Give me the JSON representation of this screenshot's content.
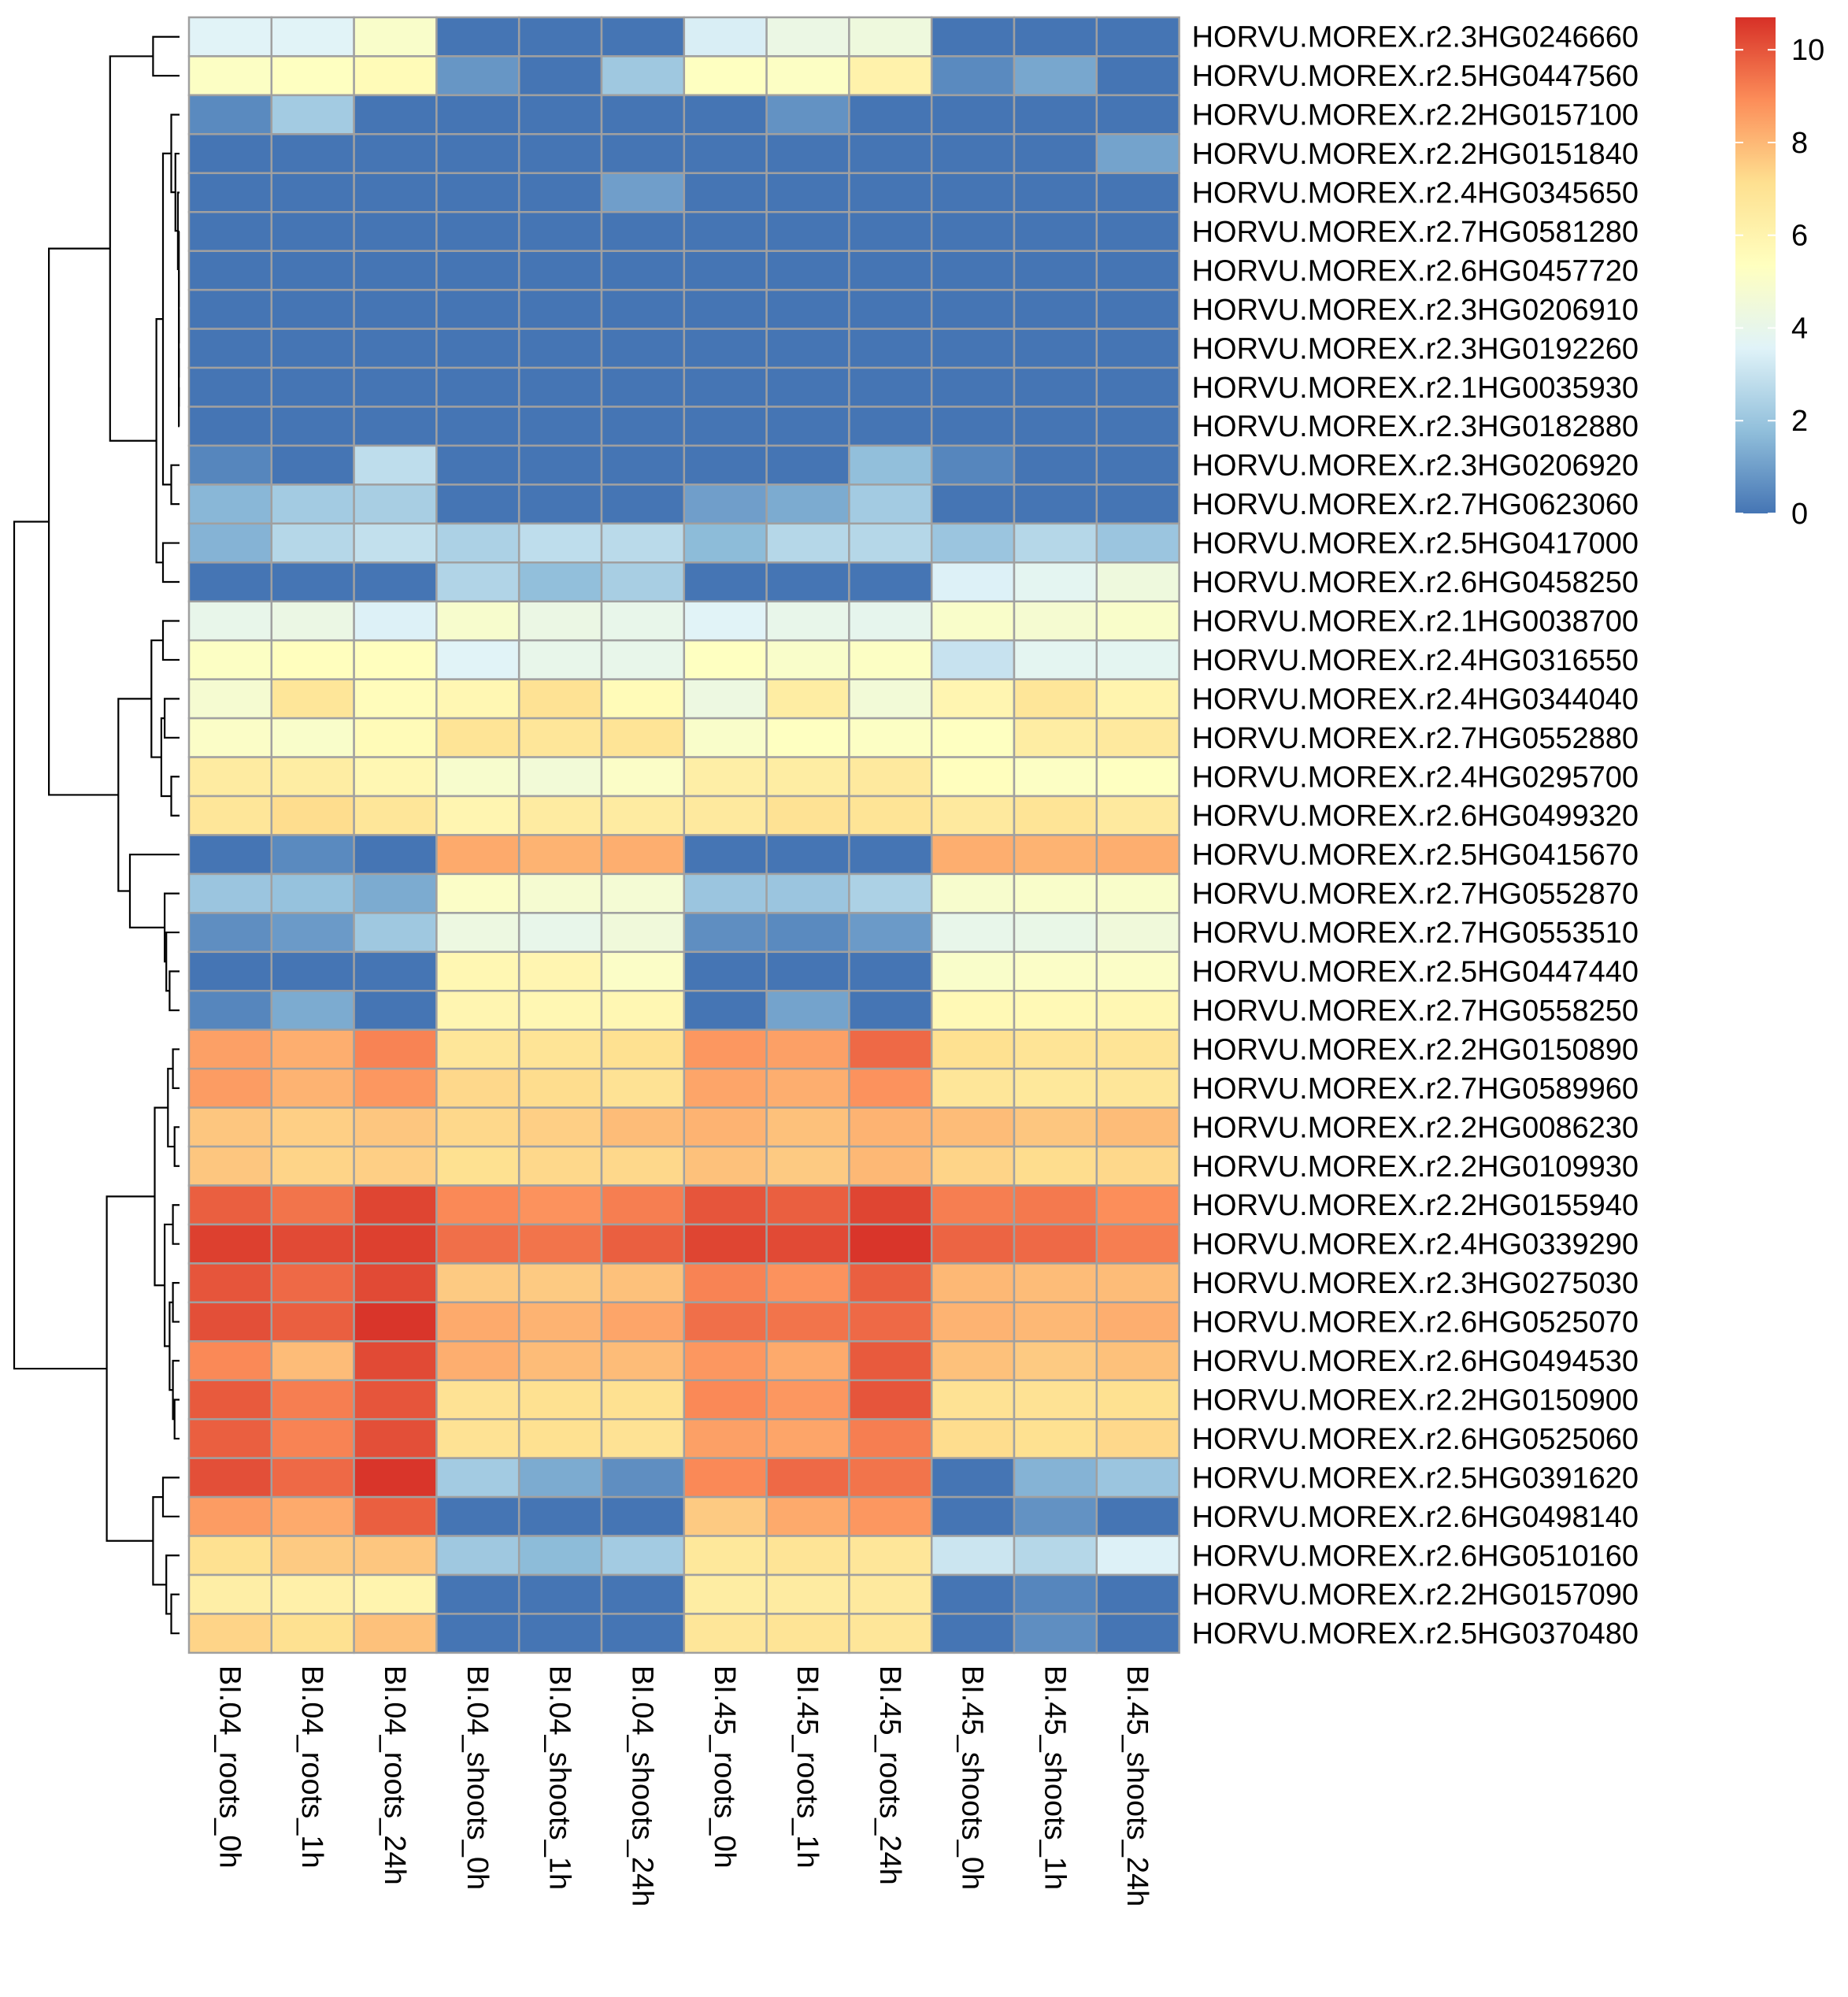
{
  "chart_data": {
    "type": "heatmap",
    "title": "",
    "columns": [
      "BI.04_roots_0h",
      "BI.04_roots_1h",
      "BI.04_roots_24h",
      "BI.04_shoots_0h",
      "BI.04_shoots_1h",
      "BI.04_shoots_24h",
      "BI.45_roots_0h",
      "BI.45_roots_1h",
      "BI.45_roots_24h",
      "BI.45_shoots_0h",
      "BI.45_shoots_1h",
      "BI.45_shoots_24h"
    ],
    "rows": [
      "HORVU.MOREX.r2.3HG0246660",
      "HORVU.MOREX.r2.5HG0447560",
      "HORVU.MOREX.r2.2HG0157100",
      "HORVU.MOREX.r2.2HG0151840",
      "HORVU.MOREX.r2.4HG0345650",
      "HORVU.MOREX.r2.7HG0581280",
      "HORVU.MOREX.r2.6HG0457720",
      "HORVU.MOREX.r2.3HG0206910",
      "HORVU.MOREX.r2.3HG0192260",
      "HORVU.MOREX.r2.1HG0035930",
      "HORVU.MOREX.r2.3HG0182880",
      "HORVU.MOREX.r2.3HG0206920",
      "HORVU.MOREX.r2.7HG0623060",
      "HORVU.MOREX.r2.5HG0417000",
      "HORVU.MOREX.r2.6HG0458250",
      "HORVU.MOREX.r2.1HG0038700",
      "HORVU.MOREX.r2.4HG0316550",
      "HORVU.MOREX.r2.4HG0344040",
      "HORVU.MOREX.r2.7HG0552880",
      "HORVU.MOREX.r2.4HG0295700",
      "HORVU.MOREX.r2.6HG0499320",
      "HORVU.MOREX.r2.5HG0415670",
      "HORVU.MOREX.r2.7HG0552870",
      "HORVU.MOREX.r2.7HG0553510",
      "HORVU.MOREX.r2.5HG0447440",
      "HORVU.MOREX.r2.7HG0558250",
      "HORVU.MOREX.r2.2HG0150890",
      "HORVU.MOREX.r2.7HG0589960",
      "HORVU.MOREX.r2.2HG0086230",
      "HORVU.MOREX.r2.2HG0109930",
      "HORVU.MOREX.r2.2HG0155940",
      "HORVU.MOREX.r2.4HG0339290",
      "HORVU.MOREX.r2.3HG0275030",
      "HORVU.MOREX.r2.6HG0525070",
      "HORVU.MOREX.r2.6HG0494530",
      "HORVU.MOREX.r2.2HG0150900",
      "HORVU.MOREX.r2.6HG0525060",
      "HORVU.MOREX.r2.5HG0391620",
      "HORVU.MOREX.r2.6HG0498140",
      "HORVU.MOREX.r2.6HG0510160",
      "HORVU.MOREX.r2.2HG0157090",
      "HORVU.MOREX.r2.5HG0370480"
    ],
    "values": [
      [
        3.6,
        3.6,
        5.0,
        0,
        0,
        0,
        3.4,
        4.2,
        4.4,
        0,
        0,
        0
      ],
      [
        5.2,
        5.3,
        5.6,
        0.8,
        0,
        2.1,
        5.3,
        5.2,
        6.1,
        0.5,
        1.2,
        0
      ],
      [
        0.5,
        2.2,
        0,
        0,
        0,
        0,
        0,
        0.7,
        0,
        0,
        0,
        0
      ],
      [
        0,
        0,
        0,
        0,
        0,
        0,
        0,
        0,
        0,
        0,
        0,
        1.1
      ],
      [
        0,
        0,
        0,
        0,
        0,
        1.0,
        0,
        0,
        0,
        0,
        0,
        0
      ],
      [
        0,
        0,
        0,
        0,
        0,
        0,
        0,
        0,
        0,
        0,
        0,
        0
      ],
      [
        0,
        0,
        0,
        0,
        0,
        0,
        0,
        0,
        0,
        0,
        0,
        0
      ],
      [
        0,
        0,
        0,
        0,
        0,
        0,
        0,
        0,
        0,
        0,
        0,
        0
      ],
      [
        0,
        0,
        0,
        0,
        0,
        0,
        0,
        0,
        0,
        0,
        0,
        0
      ],
      [
        0,
        0,
        0,
        0,
        0,
        0,
        0,
        0,
        0,
        0,
        0,
        0
      ],
      [
        0,
        0,
        0,
        0,
        0,
        0,
        0,
        0,
        0,
        0,
        0,
        0
      ],
      [
        0.4,
        0,
        2.8,
        0,
        0,
        0,
        0,
        0,
        1.8,
        0.4,
        0,
        0
      ],
      [
        1.6,
        2.2,
        2.3,
        0,
        0,
        0,
        1.0,
        1.3,
        2.2,
        0,
        0,
        0
      ],
      [
        1.5,
        2.6,
        2.9,
        2.4,
        2.8,
        2.7,
        1.7,
        2.6,
        2.6,
        2.0,
        2.6,
        2.0
      ],
      [
        0,
        0,
        0,
        2.5,
        1.8,
        2.3,
        0,
        0,
        0,
        3.5,
        3.8,
        4.4
      ],
      [
        4.0,
        4.2,
        3.5,
        4.9,
        4.2,
        4.0,
        3.6,
        4.0,
        3.9,
        5.0,
        4.8,
        5.0
      ],
      [
        5.2,
        5.4,
        5.4,
        3.6,
        4.0,
        4.0,
        5.3,
        5.0,
        5.2,
        3.0,
        3.8,
        3.8
      ],
      [
        4.8,
        6.8,
        5.5,
        5.8,
        7.0,
        5.6,
        4.3,
        6.4,
        4.6,
        5.9,
        6.8,
        6.0
      ],
      [
        5.1,
        5.0,
        5.6,
        6.9,
        6.8,
        6.9,
        5.0,
        5.3,
        5.2,
        5.3,
        6.4,
        6.6
      ],
      [
        6.5,
        6.4,
        5.8,
        4.9,
        4.6,
        5.1,
        6.3,
        6.4,
        6.6,
        5.4,
        5.2,
        5.3
      ],
      [
        6.8,
        7.2,
        6.8,
        5.9,
        6.5,
        6.5,
        6.6,
        7.0,
        6.9,
        6.6,
        6.9,
        6.6
      ],
      [
        0,
        0.5,
        0,
        8.3,
        8.1,
        8.2,
        0,
        0,
        0,
        8.2,
        8.1,
        8.2
      ],
      [
        2.0,
        1.9,
        1.3,
        5.1,
        4.8,
        4.7,
        2.0,
        2.0,
        2.4,
        4.9,
        5.0,
        5.0
      ],
      [
        0.6,
        0.9,
        2.1,
        4.3,
        4.0,
        4.5,
        0.6,
        0.5,
        0.9,
        4.0,
        4.1,
        4.5
      ],
      [
        0,
        0,
        0,
        5.8,
        5.9,
        5.1,
        0,
        0,
        0,
        5.0,
        5.1,
        5.1
      ],
      [
        0.4,
        1.3,
        0,
        5.9,
        5.8,
        5.8,
        0,
        1.1,
        0,
        5.7,
        5.7,
        5.8
      ],
      [
        8.5,
        8.2,
        9.1,
        6.8,
        6.9,
        7.1,
        8.7,
        8.5,
        9.6,
        7.1,
        6.9,
        6.9
      ],
      [
        8.6,
        8.1,
        8.7,
        7.3,
        7.2,
        7.0,
        8.4,
        8.2,
        8.8,
        6.8,
        6.7,
        6.8
      ],
      [
        7.7,
        7.5,
        7.7,
        7.3,
        7.5,
        7.9,
        8.1,
        7.8,
        8.1,
        7.9,
        7.7,
        7.9
      ],
      [
        7.7,
        7.4,
        7.5,
        7.1,
        7.3,
        7.3,
        7.8,
        7.6,
        8.0,
        7.4,
        7.2,
        7.3
      ],
      [
        9.8,
        9.4,
        10.3,
        9.0,
        8.8,
        9.2,
        10.0,
        9.8,
        10.3,
        9.2,
        9.3,
        8.9
      ],
      [
        10.4,
        10.2,
        10.4,
        9.5,
        9.4,
        9.8,
        10.3,
        10.2,
        10.6,
        9.7,
        9.6,
        9.2
      ],
      [
        10.0,
        9.6,
        10.2,
        7.6,
        7.6,
        7.8,
        9.1,
        8.8,
        9.8,
        8.0,
        7.9,
        7.9
      ],
      [
        10.1,
        9.8,
        10.6,
        8.3,
        8.1,
        8.4,
        9.5,
        9.4,
        9.6,
        8.1,
        8.0,
        8.2
      ],
      [
        9.0,
        7.9,
        10.2,
        8.2,
        7.9,
        7.9,
        8.7,
        8.3,
        9.9,
        7.8,
        7.6,
        7.8
      ],
      [
        9.9,
        9.2,
        10.0,
        7.0,
        7.1,
        7.1,
        9.0,
        8.7,
        10.0,
        7.0,
        7.0,
        7.1
      ],
      [
        9.8,
        9.1,
        10.1,
        7.0,
        7.1,
        7.0,
        8.5,
        8.4,
        9.2,
        7.2,
        7.1,
        7.3
      ],
      [
        10.1,
        9.6,
        10.6,
        2.2,
        1.3,
        0.6,
        9.0,
        9.6,
        9.4,
        0,
        1.5,
        2.0
      ],
      [
        8.6,
        8.3,
        9.8,
        0,
        0,
        0,
        7.6,
        8.3,
        8.7,
        0,
        0.7,
        0
      ],
      [
        7.1,
        7.6,
        7.7,
        2.1,
        1.7,
        2.2,
        6.7,
        6.9,
        6.8,
        3.1,
        2.6,
        3.5
      ],
      [
        6.3,
        6.2,
        6.0,
        0,
        0,
        0,
        6.4,
        6.5,
        6.6,
        0,
        0.4,
        0
      ],
      [
        7.4,
        7.1,
        7.8,
        0,
        0,
        0,
        6.8,
        6.9,
        6.8,
        0,
        0.6,
        0
      ]
    ],
    "scale": {
      "min": 0,
      "max": 10.7,
      "ticks": [
        0,
        2,
        4,
        6,
        8,
        10
      ],
      "colors": [
        "#4575B4",
        "#91BFDB",
        "#E0F3F8",
        "#FFFFBF",
        "#FEE090",
        "#FC8D59",
        "#D73027"
      ]
    },
    "legend_position": "top-right",
    "cell_border_color": "#A0A0A0",
    "dendrogram": "rows"
  }
}
